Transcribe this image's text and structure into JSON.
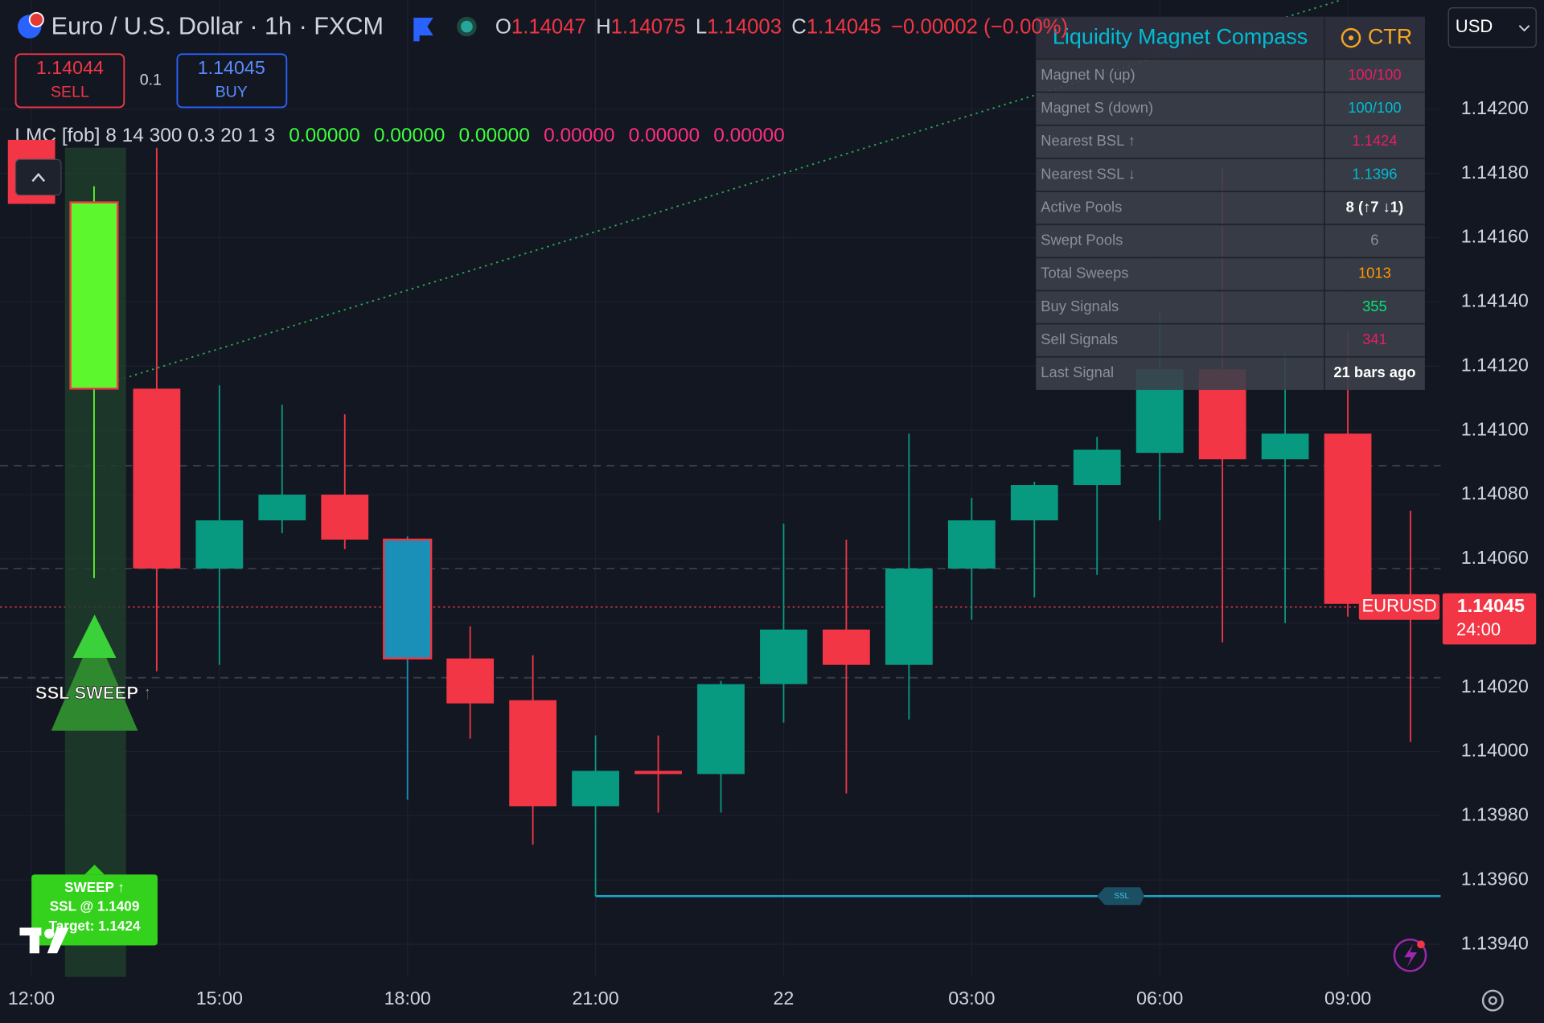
{
  "header": {
    "symbol": "Euro / U.S. Dollar · 1h · FXCM",
    "ohlc_labels": [
      "O",
      "H",
      "L",
      "C"
    ],
    "change": "−0.00002 (−0.00%)"
  },
  "trade": {
    "sell_price": "1.14044",
    "sell": "SELL",
    "quantity": "0.1",
    "buy_price": "1.14045",
    "buy": "BUY"
  },
  "currency": "USD",
  "indicator": {
    "name": "LMC [fob] 8 14 300 0.3 20 1 3",
    "values": [
      {
        "text": "0.00000",
        "color": "#3cff3c"
      },
      {
        "text": "0.00000",
        "color": "#3cff3c"
      },
      {
        "text": "0.00000",
        "color": "#3cff3c"
      },
      {
        "text": "0.00000",
        "color": "#ff2e80"
      },
      {
        "text": "0.00000",
        "color": "#ff2e80"
      },
      {
        "text": "0.00000",
        "color": "#ff2e80"
      }
    ]
  },
  "table": {
    "title": "Liquidity Magnet Compass",
    "badge": "CTR",
    "rows": [
      {
        "label": "Magnet N (up)",
        "value": "100/100",
        "color": "#e91e63"
      },
      {
        "label": "Magnet S (down)",
        "value": "100/100",
        "color": "#00bcd4"
      },
      {
        "label": "Nearest BSL ↑",
        "value": "1.1424",
        "color": "#e91e63"
      },
      {
        "label": "Nearest SSL ↓",
        "value": "1.1396",
        "color": "#00bcd4"
      },
      {
        "label": "Active Pools",
        "value": "8 (↑7 ↓1)",
        "color": "#ffffff"
      },
      {
        "label": "Swept Pools",
        "value": "6",
        "color": "#8a8f99"
      },
      {
        "label": "Total Sweeps",
        "value": "1013",
        "color": "#ff9800"
      },
      {
        "label": "Buy Signals",
        "value": "355",
        "color": "#00e676"
      },
      {
        "label": "Sell Signals",
        "value": "341",
        "color": "#e91e63"
      },
      {
        "label": "Last Signal",
        "value": "21 bars ago",
        "color": "#ffffff"
      }
    ]
  },
  "labels": {
    "sweep": "SSL SWEEP ↑",
    "signal": [
      "SWEEP ↑",
      "SSL @ 1.1409",
      "Target: 1.1424"
    ],
    "ssl_tag": "SSL"
  },
  "price_tag": {
    "symbol": "EURUSD",
    "countdown": "24:00"
  },
  "chart_data": {
    "type": "candlestick",
    "x": [
      1,
      2,
      3,
      4,
      5,
      6,
      7,
      8,
      9,
      10,
      11,
      12,
      13,
      14,
      15,
      16,
      17,
      18,
      19,
      20,
      21,
      22
    ],
    "open": [
      1.14113,
      1.14113,
      1.14057,
      1.14072,
      1.1408,
      1.14066,
      1.14029,
      1.14016,
      1.13983,
      1.13994,
      1.13993,
      1.14021,
      1.14038,
      1.14027,
      1.14057,
      1.14072,
      1.14083,
      1.14093,
      1.14119,
      1.14091,
      1.14099,
      1.14047
    ],
    "high": [
      1.14176,
      1.14188,
      1.14114,
      1.14108,
      1.14105,
      1.14067,
      1.14039,
      1.1403,
      1.14005,
      1.14005,
      1.14022,
      1.14071,
      1.14066,
      1.14099,
      1.14079,
      1.14084,
      1.14098,
      1.14137,
      1.14182,
      1.14124,
      1.14131,
      1.14075
    ],
    "low": [
      1.14054,
      1.14025,
      1.14027,
      1.14068,
      1.14063,
      1.13985,
      1.14004,
      1.13971,
      1.13955,
      1.13981,
      1.13981,
      1.14009,
      1.13987,
      1.1401,
      1.14041,
      1.14048,
      1.14055,
      1.14072,
      1.14034,
      1.1404,
      1.14042,
      1.14003
    ],
    "close": [
      1.14171,
      1.14057,
      1.14072,
      1.1408,
      1.14066,
      1.14029,
      1.14015,
      1.13983,
      1.13994,
      1.13993,
      1.14021,
      1.14038,
      1.14027,
      1.14057,
      1.14072,
      1.14083,
      1.14094,
      1.14119,
      1.14091,
      1.14099,
      1.14046,
      1.14045
    ],
    "colors": [
      "#5cf72c",
      "#f23645",
      "#089981",
      "#089981",
      "#f23645",
      "#1a8fb8",
      "#f23645",
      "#f23645",
      "#089981",
      "#f23645",
      "#089981",
      "#089981",
      "#f23645",
      "#089981",
      "#089981",
      "#089981",
      "#089981",
      "#089981",
      "#f23645",
      "#089981",
      "#f23645",
      "#f23645"
    ],
    "xlim": [
      -0.5,
      22.48
    ],
    "xticks": [
      {
        "value": 0,
        "label": "12:00"
      },
      {
        "value": 3,
        "label": "15:00"
      },
      {
        "value": 6,
        "label": "18:00"
      },
      {
        "value": 9,
        "label": "21:00"
      },
      {
        "value": 12,
        "label": "22"
      },
      {
        "value": 15,
        "label": "03:00"
      },
      {
        "value": 18,
        "label": "06:00"
      },
      {
        "value": 21,
        "label": "09:00"
      }
    ],
    "ylim": [
      1.1393,
      1.14234
    ],
    "yticks": [
      {
        "value": 1.1394,
        "label": "1.13940"
      },
      {
        "value": 1.1396,
        "label": "1.13960"
      },
      {
        "value": 1.1398,
        "label": "1.13980"
      },
      {
        "value": 1.14,
        "label": "1.14000"
      },
      {
        "value": 1.1402,
        "label": "1.14020"
      },
      {
        "value": 1.1404,
        "label": "1.14040"
      },
      {
        "value": 1.1406,
        "label": "1.14060"
      },
      {
        "value": 1.1408,
        "label": "1.14080"
      },
      {
        "value": 1.141,
        "label": "1.14100"
      },
      {
        "value": 1.1412,
        "label": "1.14120"
      },
      {
        "value": 1.1414,
        "label": "1.14140"
      },
      {
        "value": 1.1416,
        "label": "1.14160"
      },
      {
        "value": 1.1418,
        "label": "1.14180"
      },
      {
        "value": 1.142,
        "label": "1.14200"
      }
    ],
    "grid": true,
    "levels": [
      1.14089,
      1.14057,
      1.14023
    ],
    "ssl_level": 1.13955
  }
}
